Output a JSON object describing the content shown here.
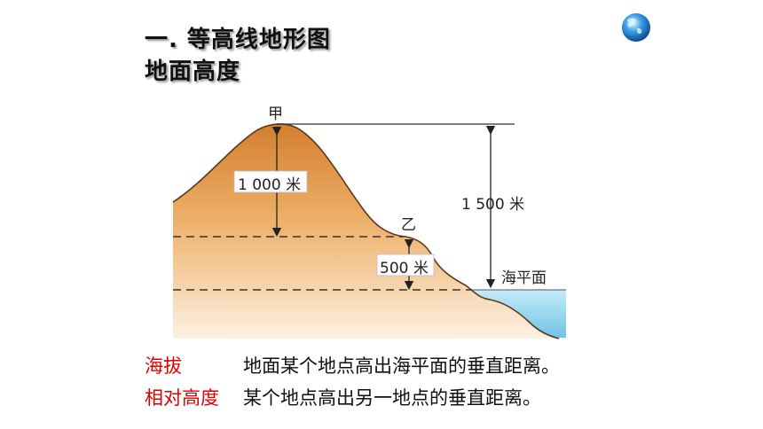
{
  "slide": {
    "title_line1": "一. 等高线地形图",
    "title_line2": "地面高度",
    "globe_icon": "globe-icon"
  },
  "diagram": {
    "peak_label": "甲",
    "saddle_label": "乙",
    "height_1000": "1 000 米",
    "height_500": "500 米",
    "height_1500": "1 500 米",
    "sea_level_label": "海平面",
    "colors": {
      "land_top": "#d8883a",
      "land_bottom": "#fbe6cc",
      "water": "#9fd6ee",
      "outline": "#5a3a1a"
    }
  },
  "definitions": [
    {
      "term": "海拔",
      "text": "地面某个地点高出海平面的垂直距离。"
    },
    {
      "term": "相对高度",
      "text": "某个地点高出另一地点的垂直距离。"
    }
  ]
}
